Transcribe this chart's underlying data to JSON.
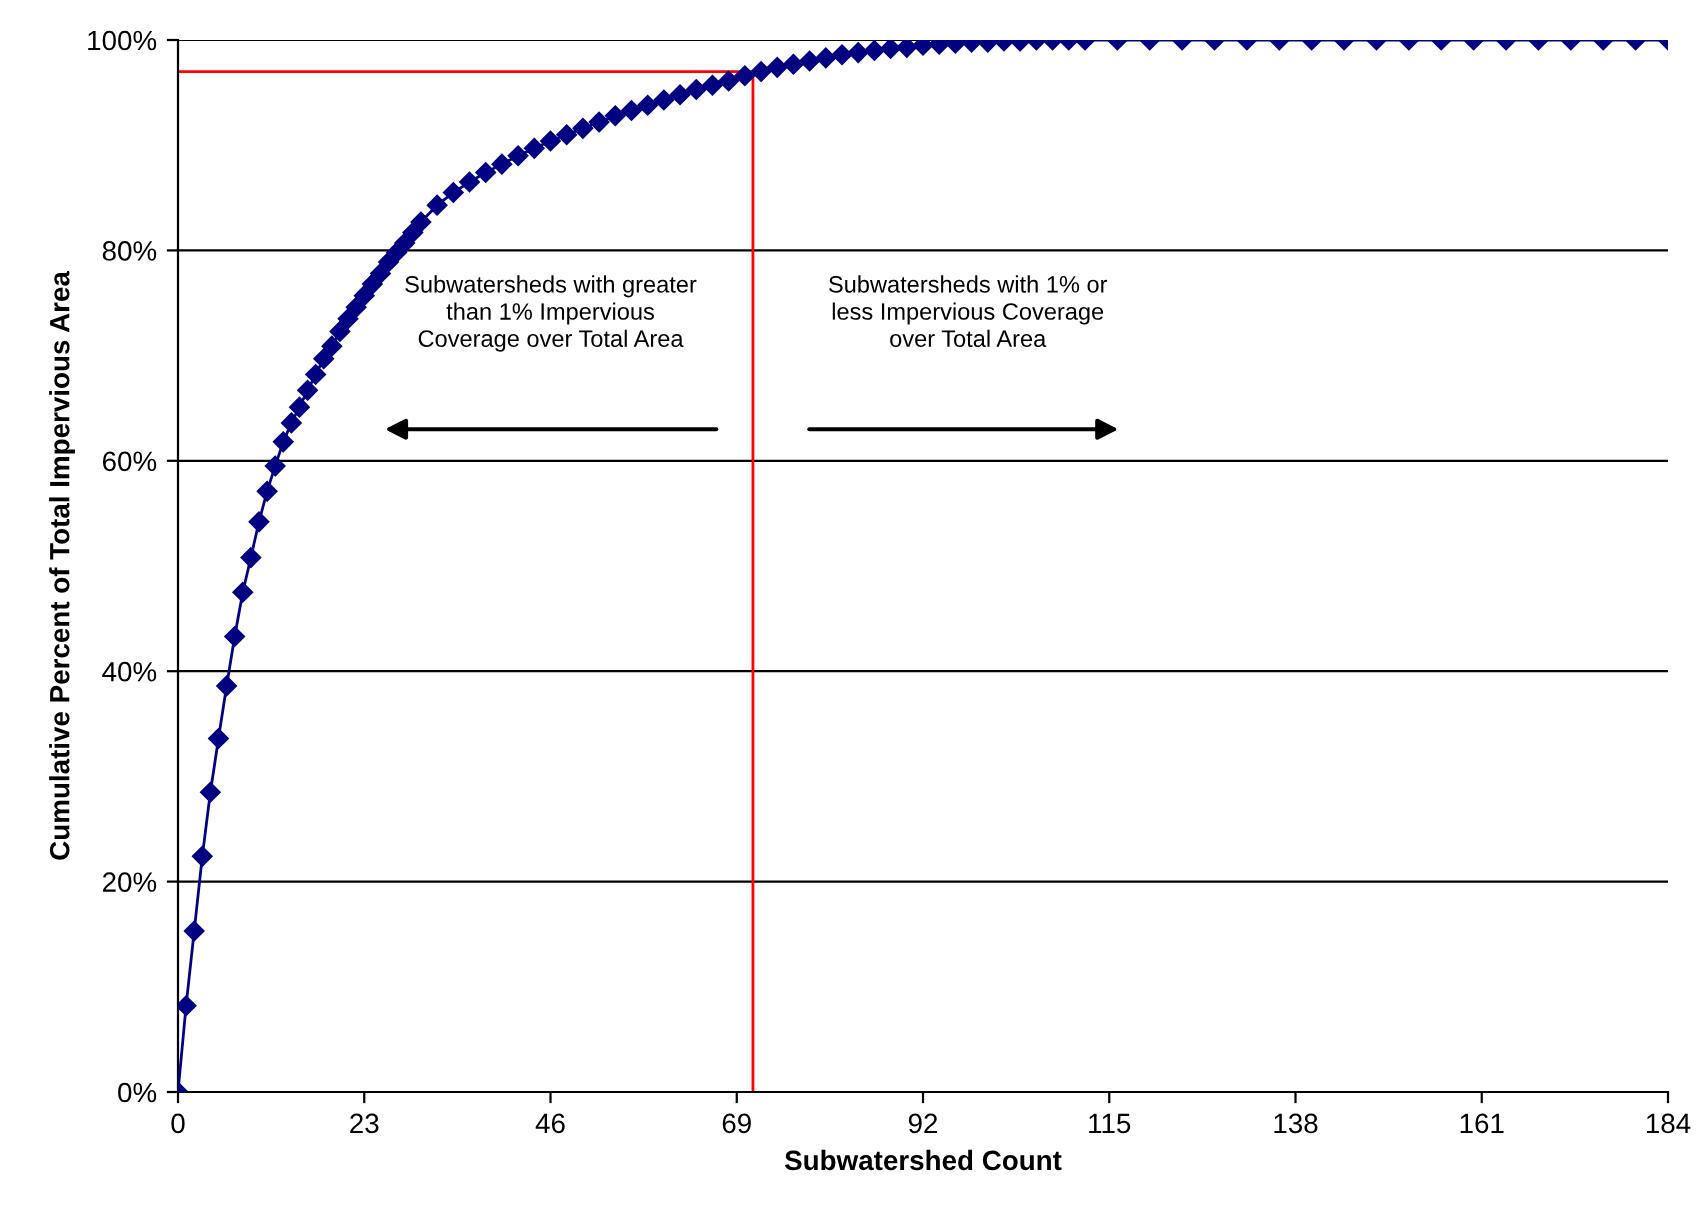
{
  "chart_data": {
    "type": "line",
    "xlabel": "Subwatershed Count",
    "ylabel": "Cumulative Percent of Total Impervious Area",
    "xlim": [
      0,
      184
    ],
    "xticks": [
      0,
      23,
      46,
      69,
      92,
      115,
      138,
      161,
      184
    ],
    "ylim": [
      0,
      100
    ],
    "yticks": [
      {
        "value": 0,
        "label": "0%"
      },
      {
        "value": 20,
        "label": "20%"
      },
      {
        "value": 40,
        "label": "40%"
      },
      {
        "value": 60,
        "label": "60%"
      },
      {
        "value": 80,
        "label": "80%"
      },
      {
        "value": 100,
        "label": "100%"
      }
    ],
    "grid": "y",
    "legend": false,
    "annotations": [
      "Subwatersheds with greater\nthan 1% Impervious\nCoverage over Total Area",
      "Subwatersheds with 1% or\nless Impervious Coverage\nover Total Area"
    ],
    "series": [
      {
        "color": "#000080",
        "marker": "diamond",
        "x": [
          0,
          1,
          2,
          3,
          4,
          5,
          6,
          7,
          8,
          9,
          10,
          11,
          12,
          13,
          14,
          15,
          16,
          17,
          18,
          19,
          20,
          21,
          22,
          23,
          24,
          25,
          26,
          27,
          28,
          29,
          30,
          32,
          34,
          36,
          38,
          40,
          42,
          44,
          46,
          48,
          50,
          52,
          54,
          56,
          58,
          60,
          62,
          64,
          66,
          68,
          70,
          72,
          74,
          76,
          78,
          80,
          82,
          84,
          86,
          88,
          90,
          92,
          94,
          96,
          98,
          100,
          102,
          104,
          106,
          108,
          110,
          112,
          116,
          120,
          124,
          128,
          132,
          136,
          140,
          144,
          148,
          152,
          156,
          160,
          164,
          168,
          172,
          176,
          180,
          184
        ],
        "values": [
          0,
          8.2,
          15.3,
          22.4,
          28.5,
          33.6,
          38.6,
          43.3,
          47.5,
          50.8,
          54.2,
          57.1,
          59.5,
          61.8,
          63.6,
          65.1,
          66.7,
          68.2,
          69.7,
          70.9,
          72.3,
          73.5,
          74.6,
          75.7,
          76.8,
          77.8,
          78.9,
          79.8,
          80.7,
          81.7,
          82.7,
          84.3,
          85.5,
          86.5,
          87.4,
          88.2,
          89.0,
          89.7,
          90.4,
          91.0,
          91.6,
          92.2,
          92.8,
          93.3,
          93.8,
          94.3,
          94.8,
          95.3,
          95.7,
          96.1,
          96.6,
          97.0,
          97.4,
          97.7,
          98.0,
          98.3,
          98.6,
          98.8,
          99.0,
          99.2,
          99.3,
          99.5,
          99.6,
          99.7,
          99.8,
          99.8,
          99.9,
          99.9,
          100,
          100,
          100,
          100,
          100,
          100,
          100,
          100,
          100,
          100,
          100,
          100,
          100,
          100,
          100,
          100,
          100,
          100,
          100,
          100,
          100,
          100
        ]
      },
      {
        "color": "#ff0000",
        "marker": "none",
        "x": [
          0,
          71,
          71
        ],
        "values": [
          97,
          97,
          0
        ]
      }
    ]
  }
}
